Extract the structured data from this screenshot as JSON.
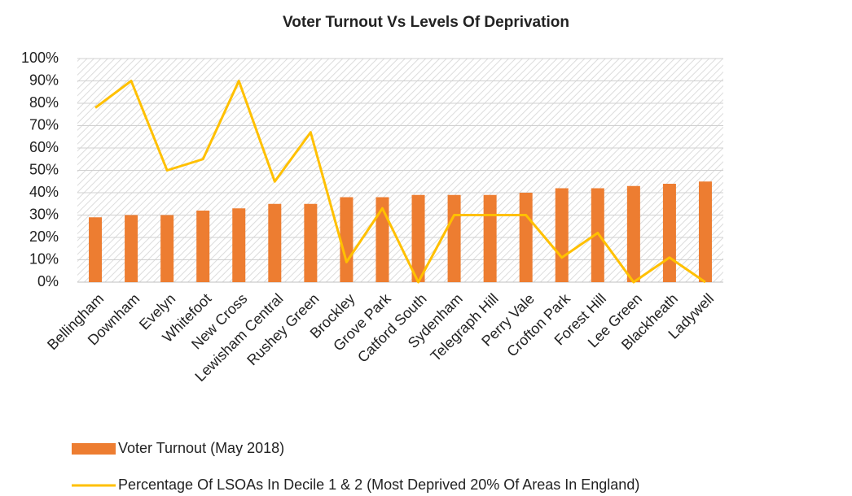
{
  "chart_data": {
    "type": "bar",
    "title": "Voter Turnout Vs Levels Of Deprivation",
    "categories": [
      "Bellingham",
      "Downham",
      "Evelyn",
      "Whitefoot",
      "New Cross",
      "Lewisham Central",
      "Rushey Green",
      "Brockley",
      "Grove Park",
      "Catford South",
      "Sydenham",
      "Telegraph Hill",
      "Perry Vale",
      "Crofton Park",
      "Forest Hill",
      "Lee Green",
      "Blackheath",
      "Ladywell"
    ],
    "series": [
      {
        "name": "Voter Turnout (May 2018)",
        "type": "bar",
        "color": "#ed7d31",
        "values": [
          29,
          30,
          30,
          32,
          33,
          35,
          35,
          38,
          38,
          39,
          39,
          39,
          40,
          42,
          42,
          43,
          44,
          45
        ]
      },
      {
        "name": "Percentage Of LSOAs In Decile 1 & 2 (Most Deprived 20% Of Areas In England)",
        "type": "line",
        "color": "#ffc000",
        "values": [
          78,
          90,
          50,
          55,
          90,
          45,
          67,
          9,
          33,
          0,
          30,
          30,
          30,
          11,
          22,
          0,
          11,
          0
        ]
      }
    ],
    "ylim": [
      0,
      100
    ],
    "yticks": [
      {
        "value": 0,
        "label": "0%"
      },
      {
        "value": 10,
        "label": "10%"
      },
      {
        "value": 20,
        "label": "20%"
      },
      {
        "value": 30,
        "label": "30%"
      },
      {
        "value": 40,
        "label": "40%"
      },
      {
        "value": 50,
        "label": "50%"
      },
      {
        "value": 60,
        "label": "60%"
      },
      {
        "value": 70,
        "label": "70%"
      },
      {
        "value": 80,
        "label": "80%"
      },
      {
        "value": 90,
        "label": "90%"
      },
      {
        "value": 100,
        "label": "100%"
      }
    ],
    "grid": true,
    "legend": "bottom"
  }
}
